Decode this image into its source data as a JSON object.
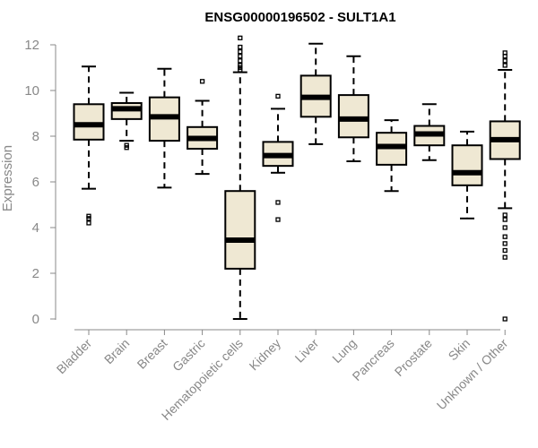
{
  "chart_data": {
    "type": "boxplot",
    "title": "ENSG00000196502 - SULT1A1",
    "xlabel": "",
    "ylabel": "Expression",
    "ylim": [
      0,
      12.3
    ],
    "yticks": [
      0,
      2,
      4,
      6,
      8,
      10,
      12
    ],
    "box_color": "#efe8d3",
    "categories": [
      "Bladder",
      "Brain",
      "Breast",
      "Gastric",
      "Hematopoietic cells",
      "Kidney",
      "Liver",
      "Lung",
      "Pancreas",
      "Prostate",
      "Skin",
      "Unknown / Other"
    ],
    "series": [
      {
        "name": "Bladder",
        "whisker_low": 5.7,
        "q1": 7.85,
        "median": 8.5,
        "q3": 9.4,
        "whisker_high": 11.05,
        "outliers": [
          4.2,
          4.4,
          4.5
        ]
      },
      {
        "name": "Brain",
        "whisker_low": 7.8,
        "q1": 8.75,
        "median": 9.2,
        "q3": 9.45,
        "whisker_high": 9.9,
        "outliers": [
          7.5,
          7.6
        ]
      },
      {
        "name": "Breast",
        "whisker_low": 5.75,
        "q1": 7.8,
        "median": 8.85,
        "q3": 9.7,
        "whisker_high": 10.95,
        "outliers": []
      },
      {
        "name": "Gastric",
        "whisker_low": 6.35,
        "q1": 7.45,
        "median": 7.9,
        "q3": 8.4,
        "whisker_high": 9.55,
        "outliers": [
          10.4
        ]
      },
      {
        "name": "Hematopoietic cells",
        "whisker_low": 0.0,
        "q1": 2.2,
        "median": 3.45,
        "q3": 5.6,
        "whisker_high": 10.8,
        "outliers": [
          10.9,
          11.0,
          11.1,
          11.3,
          11.5,
          11.7,
          11.9,
          12.3
        ]
      },
      {
        "name": "Kidney",
        "whisker_low": 6.4,
        "q1": 6.7,
        "median": 7.15,
        "q3": 7.75,
        "whisker_high": 9.2,
        "outliers": [
          9.75,
          5.1,
          4.35
        ]
      },
      {
        "name": "Liver",
        "whisker_low": 7.65,
        "q1": 8.85,
        "median": 9.7,
        "q3": 10.65,
        "whisker_high": 12.05,
        "outliers": []
      },
      {
        "name": "Lung",
        "whisker_low": 6.9,
        "q1": 7.95,
        "median": 8.75,
        "q3": 9.8,
        "whisker_high": 11.5,
        "outliers": []
      },
      {
        "name": "Pancreas",
        "whisker_low": 5.6,
        "q1": 6.75,
        "median": 7.55,
        "q3": 8.15,
        "whisker_high": 8.7,
        "outliers": []
      },
      {
        "name": "Prostate",
        "whisker_low": 6.95,
        "q1": 7.6,
        "median": 8.1,
        "q3": 8.45,
        "whisker_high": 9.4,
        "outliers": []
      },
      {
        "name": "Skin",
        "whisker_low": 4.4,
        "q1": 5.85,
        "median": 6.4,
        "q3": 7.6,
        "whisker_high": 8.2,
        "outliers": []
      },
      {
        "name": "Unknown / Other",
        "whisker_low": 4.85,
        "q1": 7.0,
        "median": 7.85,
        "q3": 8.65,
        "whisker_high": 10.9,
        "outliers": [
          11.1,
          11.3,
          11.5,
          11.65,
          4.55,
          4.35,
          4.0,
          3.6,
          3.3,
          3.0,
          2.7,
          0.0
        ]
      }
    ]
  }
}
